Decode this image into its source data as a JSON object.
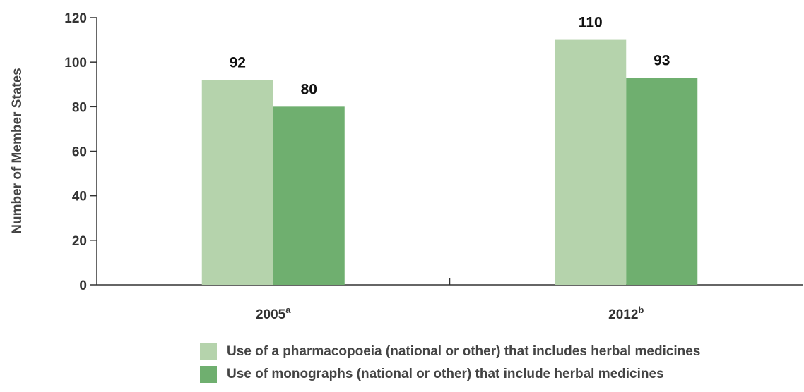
{
  "chart_data": {
    "type": "bar",
    "categories": [
      "2005",
      "2012"
    ],
    "category_superscripts": [
      "a",
      "b"
    ],
    "series": [
      {
        "name": "Use of a pharmacopoeia (national or other) that includes herbal medicines",
        "values": [
          92,
          110
        ],
        "color": "#b5d3ac"
      },
      {
        "name": "Use of monographs (national or other) that include herbal medicines",
        "values": [
          80,
          93
        ],
        "color": "#6faf6f"
      }
    ],
    "title": "",
    "xlabel": "",
    "ylabel": "Number of Member States",
    "ylim": [
      0,
      120
    ],
    "yticks": [
      0,
      20,
      40,
      60,
      80,
      100,
      120
    ],
    "grid": false,
    "legend_position": "bottom"
  }
}
